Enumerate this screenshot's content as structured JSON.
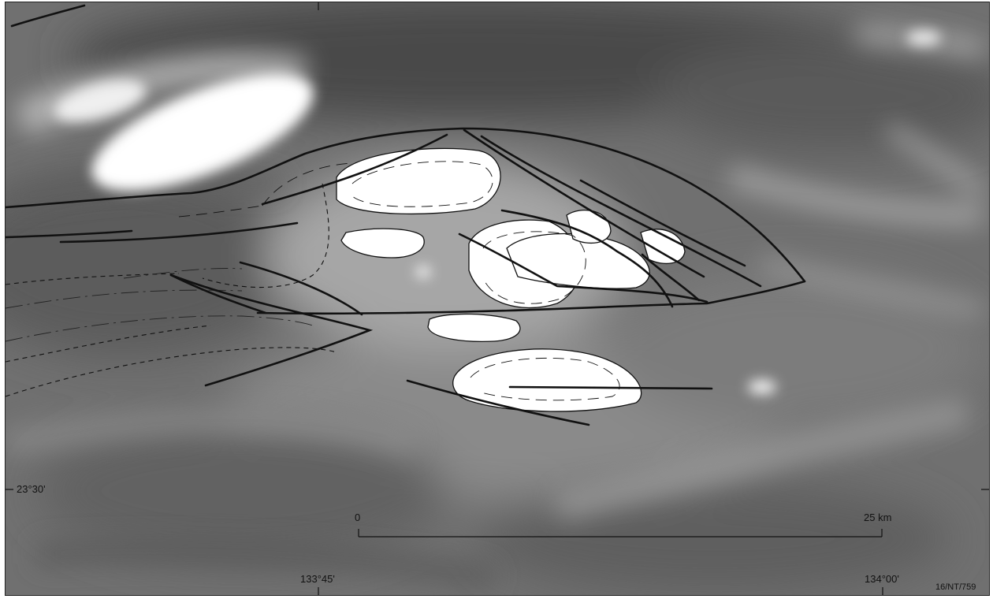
{
  "map": {
    "latitude_label": "23°30'",
    "longitude_labels": [
      "133°45'",
      "134°00'"
    ],
    "scale_bar": {
      "start_label": "0",
      "end_label": "25 km"
    },
    "figure_reference": "16/NT/759",
    "colors": {
      "frame": "#222222",
      "linework": "#111111",
      "bright_bodies": "#ffffff"
    }
  }
}
